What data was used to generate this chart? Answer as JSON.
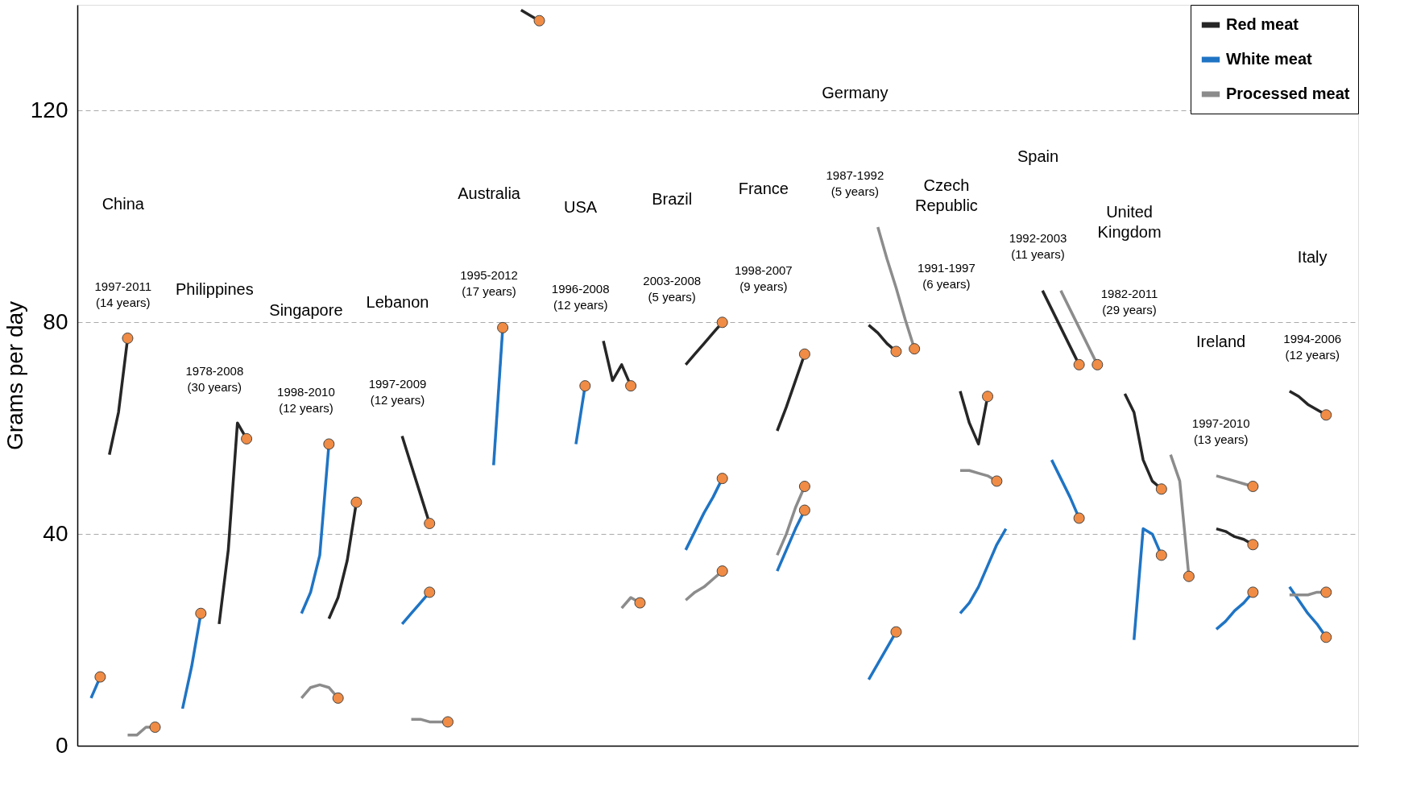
{
  "chart_data": {
    "type": "line",
    "ylabel": "Grams per day",
    "ylim": [
      0,
      140
    ],
    "yticks": [
      0,
      40,
      80,
      120
    ],
    "grid": "y",
    "legend": "top right",
    "tick_labels": "y",
    "categories": [
      null,
      null,
      null,
      null,
      null,
      null,
      null,
      null,
      null,
      null,
      null,
      null,
      null,
      null,
      null,
      null,
      null,
      null,
      null,
      null,
      null,
      null,
      null,
      null,
      null,
      null,
      null,
      null,
      null,
      null,
      null,
      null,
      null,
      null,
      null,
      null,
      null,
      null,
      null,
      null,
      null,
      null,
      null,
      null,
      null,
      null,
      null,
      null,
      null,
      null,
      null,
      null,
      null,
      null,
      null,
      null,
      null,
      null,
      null,
      null,
      null,
      null,
      null,
      null,
      null,
      null,
      null,
      null,
      null,
      null,
      null,
      null,
      null,
      null,
      null,
      null,
      null,
      null,
      null,
      null,
      null,
      null,
      null,
      null,
      null,
      null,
      null,
      null,
      null,
      null,
      null,
      null,
      null,
      null,
      null,
      null,
      null,
      null,
      null,
      null,
      null,
      null,
      null,
      null,
      null,
      null,
      null,
      null,
      null,
      null,
      null,
      null,
      null,
      null,
      null,
      null,
      null,
      null,
      null,
      null,
      null,
      null,
      null,
      null,
      null,
      null,
      null,
      null,
      null,
      null,
      null,
      null,
      null,
      null,
      null,
      null,
      null,
      null,
      null,
      null
    ],
    "series": [
      {
        "name": "Red meat",
        "color": "#262626",
        "values": [
          null,
          null,
          null,
          55,
          63,
          77,
          null,
          null,
          null,
          null,
          null,
          null,
          null,
          null,
          null,
          23,
          37,
          61,
          58,
          null,
          null,
          null,
          null,
          null,
          null,
          null,
          null,
          24,
          28,
          35,
          46,
          null,
          null,
          null,
          null,
          58.5,
          53,
          47.5,
          42,
          null,
          null,
          null,
          null,
          null,
          null,
          null,
          null,
          null,
          139,
          138,
          137,
          null,
          null,
          null,
          null,
          null,
          null,
          76.5,
          69,
          72,
          68,
          null,
          null,
          null,
          null,
          null,
          72,
          74,
          76,
          78,
          80,
          null,
          null,
          null,
          null,
          null,
          59.5,
          64,
          69,
          74,
          null,
          null,
          null,
          null,
          null,
          null,
          79.5,
          78,
          76,
          74.5,
          null,
          null,
          null,
          null,
          null,
          null,
          67,
          61,
          57,
          66,
          null,
          null,
          null,
          null,
          null,
          86,
          82.5,
          79,
          75.5,
          72,
          null,
          null,
          null,
          null,
          66.5,
          63,
          54,
          50,
          48.5,
          null,
          null,
          null,
          null,
          null,
          41,
          40.5,
          39.5,
          39,
          38,
          null,
          null,
          null,
          67,
          66,
          64.5,
          63.5,
          62.5,
          null,
          null,
          null
        ]
      },
      {
        "name": "White meat",
        "color": "#1f74c4",
        "values": [
          null,
          9,
          13,
          null,
          null,
          null,
          null,
          null,
          null,
          null,
          null,
          7,
          15,
          25,
          null,
          null,
          null,
          null,
          null,
          null,
          null,
          null,
          null,
          null,
          25,
          29,
          36,
          57,
          null,
          null,
          null,
          null,
          null,
          null,
          null,
          23,
          25,
          27,
          29,
          null,
          null,
          null,
          null,
          null,
          null,
          53,
          79,
          null,
          null,
          null,
          null,
          null,
          null,
          null,
          57,
          68,
          null,
          null,
          null,
          null,
          null,
          null,
          null,
          null,
          null,
          null,
          37,
          40.5,
          44,
          47,
          50.5,
          null,
          null,
          null,
          null,
          null,
          33,
          37,
          41,
          44.5,
          null,
          null,
          null,
          null,
          null,
          null,
          12.5,
          15.5,
          18.5,
          21.5,
          null,
          null,
          null,
          null,
          null,
          null,
          25,
          27,
          30,
          34,
          38,
          41,
          null,
          null,
          null,
          null,
          54,
          50.5,
          47,
          43,
          null,
          null,
          null,
          null,
          null,
          20,
          41,
          40,
          36,
          null,
          null,
          null,
          null,
          null,
          22,
          23.5,
          25.5,
          27,
          29,
          null,
          null,
          null,
          30,
          27.5,
          25,
          23,
          20.5,
          null,
          null,
          null
        ]
      },
      {
        "name": "Processed meat",
        "color": "#8c8c8c",
        "values": [
          null,
          null,
          null,
          null,
          null,
          2,
          2,
          3.5,
          3.5,
          null,
          null,
          null,
          null,
          null,
          null,
          null,
          null,
          null,
          null,
          null,
          null,
          null,
          null,
          null,
          9,
          11,
          11.5,
          11,
          9,
          null,
          null,
          null,
          null,
          null,
          null,
          null,
          5,
          5,
          4.5,
          4.5,
          4.5,
          null,
          null,
          null,
          null,
          null,
          null,
          null,
          null,
          null,
          null,
          null,
          null,
          null,
          null,
          null,
          null,
          null,
          null,
          26,
          28,
          27,
          null,
          null,
          null,
          null,
          27.5,
          29,
          30,
          31.5,
          33,
          null,
          null,
          null,
          null,
          null,
          36,
          40,
          45,
          49,
          null,
          null,
          null,
          null,
          null,
          null,
          null,
          98,
          92,
          86.5,
          80.5,
          75,
          null,
          null,
          null,
          null,
          52,
          52,
          51.5,
          51,
          50,
          null,
          null,
          null,
          null,
          null,
          null,
          86,
          82.5,
          79,
          75.5,
          72,
          null,
          null,
          null,
          null,
          null,
          null,
          null,
          55,
          50,
          32,
          null,
          null,
          51,
          50.5,
          50,
          49.5,
          49,
          null,
          null,
          null,
          28.5,
          28.5,
          28.5,
          29,
          29,
          null,
          null,
          null
        ]
      },
      {
        "type": "scatter",
        "color": "#f08c45",
        "values": [
          null,
          null,
          null,
          null,
          null,
          77,
          null,
          null,
          null,
          null,
          null,
          null,
          null,
          null,
          null,
          null,
          null,
          null,
          58,
          null,
          null,
          null,
          null,
          null,
          null,
          null,
          null,
          null,
          null,
          null,
          46,
          null,
          null,
          null,
          null,
          null,
          null,
          null,
          42,
          null,
          null,
          null,
          null,
          null,
          null,
          null,
          null,
          null,
          null,
          null,
          137,
          null,
          null,
          null,
          null,
          null,
          null,
          null,
          null,
          null,
          68,
          null,
          null,
          null,
          null,
          null,
          null,
          null,
          null,
          null,
          80,
          null,
          null,
          null,
          null,
          null,
          null,
          null,
          null,
          74,
          null,
          null,
          null,
          null,
          null,
          null,
          null,
          null,
          null,
          74.5,
          null,
          null,
          null,
          null,
          null,
          null,
          null,
          null,
          null,
          66,
          null,
          null,
          null,
          null,
          null,
          null,
          null,
          null,
          null,
          72,
          null,
          null,
          null,
          null,
          null,
          null,
          null,
          null,
          48.5,
          null,
          null,
          null,
          null,
          null,
          null,
          null,
          null,
          null,
          38,
          null,
          null,
          null,
          null,
          null,
          null,
          null,
          62.5,
          null,
          null,
          null
        ]
      },
      {
        "type": "scatter",
        "color": "#f08c45",
        "values": [
          null,
          null,
          13,
          null,
          null,
          null,
          null,
          null,
          null,
          null,
          null,
          null,
          null,
          25,
          null,
          null,
          null,
          null,
          null,
          null,
          null,
          null,
          null,
          null,
          null,
          null,
          null,
          57,
          null,
          null,
          null,
          null,
          null,
          null,
          null,
          null,
          null,
          null,
          29,
          null,
          null,
          null,
          null,
          null,
          null,
          null,
          79,
          null,
          null,
          null,
          null,
          null,
          null,
          null,
          null,
          68,
          null,
          null,
          null,
          null,
          null,
          null,
          null,
          null,
          null,
          null,
          null,
          null,
          null,
          null,
          50.5,
          null,
          null,
          null,
          null,
          null,
          null,
          null,
          null,
          44.5,
          null,
          null,
          null,
          null,
          null,
          null,
          null,
          null,
          null,
          21.5,
          null,
          null,
          null,
          null,
          null,
          null,
          null,
          null,
          null,
          null,
          null,
          null,
          null,
          null,
          null,
          null,
          null,
          null,
          null,
          43,
          null,
          null,
          null,
          null,
          null,
          null,
          null,
          null,
          36,
          null,
          null,
          null,
          null,
          null,
          null,
          null,
          null,
          null,
          29,
          null,
          null,
          null,
          null,
          null,
          null,
          null,
          20.5,
          null,
          null,
          null
        ]
      },
      {
        "type": "scatter",
        "color": "#f08c45",
        "values": [
          null,
          null,
          null,
          null,
          null,
          null,
          null,
          null,
          3.5,
          null,
          null,
          null,
          null,
          null,
          null,
          null,
          null,
          null,
          null,
          null,
          null,
          null,
          null,
          null,
          null,
          null,
          null,
          null,
          9,
          null,
          null,
          null,
          null,
          null,
          null,
          null,
          null,
          null,
          null,
          null,
          4.5,
          null,
          null,
          null,
          null,
          null,
          null,
          null,
          null,
          null,
          null,
          null,
          null,
          null,
          null,
          null,
          null,
          null,
          null,
          null,
          null,
          27,
          null,
          null,
          null,
          null,
          null,
          null,
          null,
          null,
          33,
          null,
          null,
          null,
          null,
          null,
          null,
          null,
          null,
          49,
          null,
          null,
          null,
          null,
          null,
          null,
          null,
          null,
          null,
          null,
          null,
          75,
          null,
          null,
          null,
          null,
          null,
          null,
          null,
          null,
          50,
          null,
          null,
          null,
          null,
          null,
          null,
          null,
          null,
          null,
          null,
          72,
          null,
          null,
          null,
          null,
          null,
          null,
          null,
          null,
          null,
          32,
          null,
          null,
          null,
          null,
          null,
          null,
          49,
          null,
          null,
          null,
          null,
          null,
          null,
          null,
          29,
          null,
          null,
          null
        ]
      }
    ],
    "annotations": [
      "China",
      "1997-2011 (14 years)",
      "Philippines",
      "1978-2008 (30 years)",
      "Singapore",
      "1998-2010 (12 years)",
      "Lebanon",
      "1997-2009 (12 years)",
      "Australia",
      "1995-2012 (17 years)",
      "USA",
      "1996-2008 (12 years)",
      "Brazil",
      "2003-2008 (5 years)",
      "France",
      "1998-2007 (9 years)",
      "Germany",
      "1987-1992 (5 years)",
      "Czech Republic",
      "1991-1997 (6 years)",
      "Spain",
      "1992-2003 (11 years)",
      "United Kingdom",
      "1982-2011 (29 years)",
      "Ireland",
      "1997-2010 (13 years)",
      "Italy",
      "1994-2006 (12 years)"
    ]
  }
}
